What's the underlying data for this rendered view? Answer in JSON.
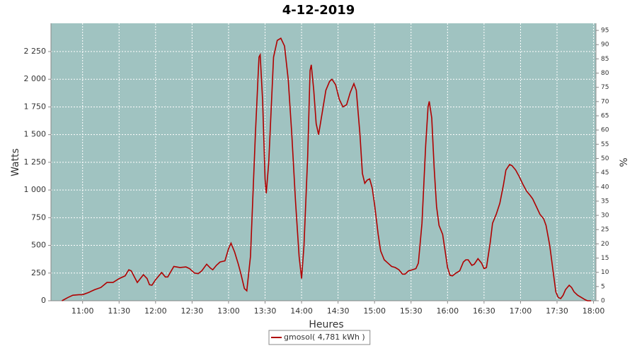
{
  "chart_data": {
    "type": "line",
    "title": "4-12-2019",
    "x_label": "Heures",
    "y_label": "Watts",
    "y2_label": "%",
    "x": [
      "10:43",
      "10:48",
      "10:52",
      "10:57",
      "11:00",
      "11:05",
      "11:10",
      "11:15",
      "11:20",
      "11:25",
      "11:30",
      "11:35",
      "11:38",
      "11:40",
      "11:45",
      "11:50",
      "11:53",
      "11:55",
      "11:57",
      "12:00",
      "12:05",
      "12:08",
      "12:10",
      "12:15",
      "12:20",
      "12:25",
      "12:28",
      "12:32",
      "12:35",
      "12:38",
      "12:42",
      "12:45",
      "12:47",
      "12:50",
      "12:53",
      "12:57",
      "13:00",
      "13:02",
      "13:05",
      "13:08",
      "13:10",
      "13:13",
      "13:15",
      "13:18",
      "13:22",
      "13:25",
      "13:26",
      "13:28",
      "13:30",
      "13:31",
      "13:33",
      "13:37",
      "13:40",
      "13:43",
      "13:46",
      "13:49",
      "13:52",
      "13:55",
      "13:58",
      "14:00",
      "14:02",
      "14:05",
      "14:07",
      "14:08",
      "14:10",
      "14:12",
      "14:14",
      "14:17",
      "14:20",
      "14:23",
      "14:25",
      "14:28",
      "14:31",
      "14:34",
      "14:37",
      "14:40",
      "14:43",
      "14:45",
      "14:48",
      "14:50",
      "14:52",
      "14:54",
      "14:56",
      "14:58",
      "15:00",
      "15:03",
      "15:05",
      "15:08",
      "15:11",
      "15:14",
      "15:17",
      "15:20",
      "15:23",
      "15:25",
      "15:28",
      "15:31",
      "15:34",
      "15:36",
      "15:39",
      "15:42",
      "15:44",
      "15:45",
      "15:47",
      "15:49",
      "15:51",
      "15:53",
      "15:56",
      "15:58",
      "16:00",
      "16:02",
      "16:04",
      "16:07",
      "16:10",
      "16:13",
      "16:15",
      "16:17",
      "16:20",
      "16:22",
      "16:25",
      "16:28",
      "16:30",
      "16:32",
      "16:35",
      "16:37",
      "16:40",
      "16:43",
      "16:46",
      "16:48",
      "16:51",
      "16:53",
      "16:56",
      "16:59",
      "17:02",
      "17:05",
      "17:08",
      "17:10",
      "17:13",
      "17:16",
      "17:19",
      "17:21",
      "17:24",
      "17:27",
      "17:29",
      "17:31",
      "17:33",
      "17:35",
      "17:37",
      "17:40",
      "17:42",
      "17:44",
      "17:47",
      "17:50",
      "17:53",
      "17:55",
      "17:58"
    ],
    "series": [
      {
        "name": "gmosol( 4,781 kWh )",
        "color": "#b00000",
        "values": [
          0,
          30,
          50,
          55,
          55,
          75,
          100,
          120,
          165,
          165,
          200,
          225,
          280,
          270,
          165,
          235,
          200,
          145,
          140,
          190,
          255,
          215,
          215,
          310,
          300,
          305,
          290,
          250,
          245,
          270,
          330,
          295,
          280,
          320,
          350,
          360,
          470,
          520,
          440,
          330,
          250,
          110,
          90,
          400,
          1500,
          2200,
          2220,
          1800,
          1100,
          970,
          1250,
          2200,
          2350,
          2370,
          2300,
          2000,
          1500,
          900,
          400,
          200,
          500,
          1300,
          2080,
          2130,
          1900,
          1600,
          1500,
          1700,
          1900,
          1980,
          2000,
          1950,
          1820,
          1750,
          1770,
          1880,
          1960,
          1900,
          1500,
          1150,
          1060,
          1090,
          1100,
          1020,
          870,
          600,
          450,
          370,
          340,
          310,
          300,
          280,
          240,
          240,
          270,
          280,
          290,
          340,
          700,
          1400,
          1750,
          1800,
          1650,
          1200,
          850,
          680,
          600,
          450,
          300,
          230,
          225,
          250,
          270,
          350,
          370,
          370,
          320,
          330,
          380,
          340,
          290,
          300,
          520,
          700,
          780,
          880,
          1050,
          1180,
          1230,
          1220,
          1180,
          1120,
          1050,
          990,
          950,
          920,
          850,
          780,
          740,
          680,
          500,
          250,
          80,
          30,
          20,
          50,
          100,
          140,
          120,
          80,
          50,
          30,
          10,
          0,
          0
        ]
      }
    ],
    "xlim": [
      "10:34",
      "18:02"
    ],
    "xticks": [
      "11:00",
      "11:30",
      "12:00",
      "12:30",
      "13:00",
      "13:30",
      "14:00",
      "14:30",
      "15:00",
      "15:30",
      "16:00",
      "16:30",
      "17:00",
      "17:30",
      "18:00"
    ],
    "ylim": [
      0,
      2505
    ],
    "yticks": [
      0,
      250,
      500,
      750,
      {
        "value": 1000,
        "label": "1 000"
      },
      {
        "value": 1250,
        "label": "1 250"
      },
      {
        "value": 1500,
        "label": "1 500"
      },
      {
        "value": 1750,
        "label": "1 750"
      },
      {
        "value": 2000,
        "label": "2 000"
      },
      {
        "value": 2250,
        "label": "2 250"
      }
    ],
    "y2lim": [
      0,
      97.5
    ],
    "y2ticks": [
      0,
      5,
      10,
      15,
      20,
      25,
      30,
      35,
      40,
      45,
      50,
      55,
      60,
      65,
      70,
      75,
      80,
      85,
      90,
      95
    ],
    "grid": true,
    "background": "#a0c3c1",
    "legend": "bottom"
  }
}
